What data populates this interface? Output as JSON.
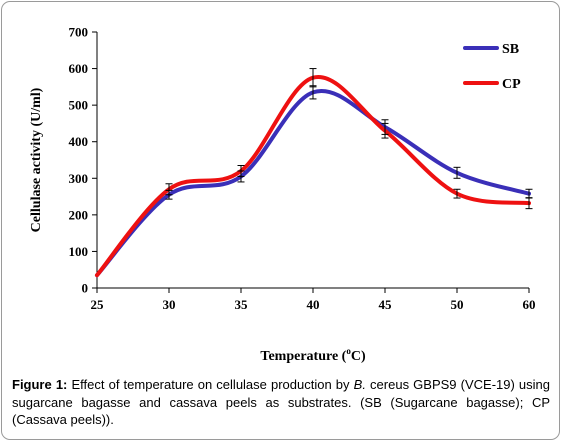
{
  "chart_data": {
    "type": "line",
    "categories": [
      "25",
      "30",
      "35",
      "40",
      "45",
      "50",
      "60"
    ],
    "series": [
      {
        "name": "SB",
        "color": "#3a2fb8",
        "values": [
          35,
          255,
          305,
          535,
          440,
          315,
          258
        ],
        "errors": [
          0,
          12,
          15,
          18,
          20,
          15,
          12
        ]
      },
      {
        "name": "CP",
        "color": "#ee1111",
        "values": [
          35,
          270,
          320,
          575,
          430,
          258,
          232
        ],
        "errors": [
          0,
          15,
          15,
          25,
          20,
          12,
          15
        ]
      }
    ],
    "xlabel_prefix": "Temperature (",
    "xlabel_sup": "o",
    "xlabel_suffix": "C)",
    "ylabel": "Cellulase activity (U/ml)",
    "ylim": [
      0,
      700
    ],
    "yticks": [
      0,
      100,
      200,
      300,
      400,
      500,
      600,
      700
    ],
    "legend_position": "top-right",
    "grid": false
  },
  "caption": {
    "label": "Figure 1:",
    "text_before": " Effect of temperature on cellulase production by ",
    "italic": "B.",
    "text_after": " cereus GBPS9 (VCE-19) using sugarcane bagasse and cassava peels as substrates. (SB (Sugarcane bagasse); CP (Cassava peels))."
  }
}
